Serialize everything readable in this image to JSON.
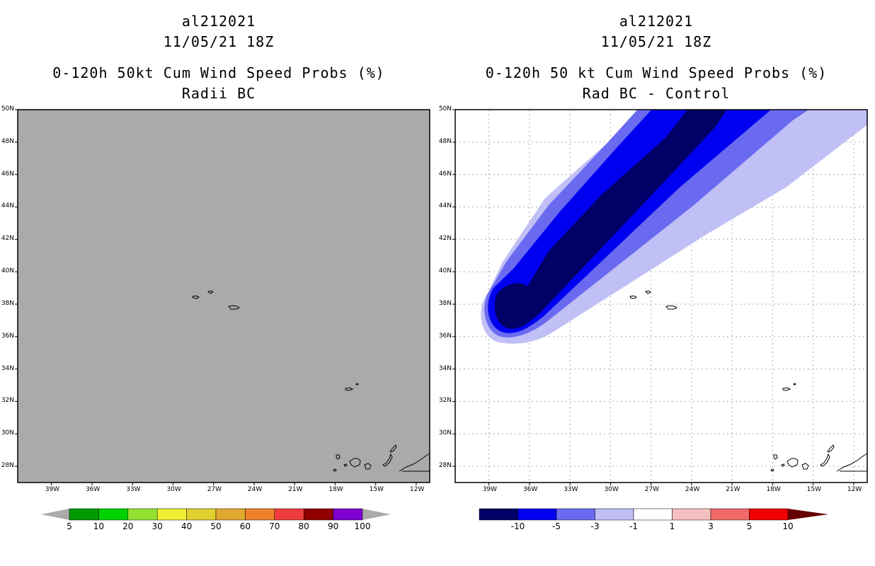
{
  "left": {
    "storm_id": "al212021",
    "datetime": "11/05/21 18Z",
    "product": "0-120h 50kt Cum Wind Speed Probs (%)",
    "subtitle": "Radii BC",
    "field": "uniform gray (no probability shading)",
    "colorbar_labels": [
      "5",
      "10",
      "20",
      "30",
      "40",
      "50",
      "60",
      "70",
      "80",
      "90",
      "100"
    ],
    "colorbar_colors": [
      "#009a00",
      "#00d200",
      "#94e032",
      "#f0f032",
      "#e0d030",
      "#e0a830",
      "#ef8128",
      "#f03c3c",
      "#900000",
      "#8000d0"
    ]
  },
  "right": {
    "storm_id": "al212021",
    "datetime": "11/05/21 18Z",
    "product": "0-120h 50 kt Cum Wind Speed Probs (%)",
    "subtitle": "Rad BC - Control",
    "colorbar_labels": [
      "-10",
      "-5",
      "-3",
      "-1",
      "1",
      "3",
      "5",
      "10"
    ],
    "colorbar_colors": [
      "#000066",
      "#0000f0",
      "#6a6af0",
      "#c0c0f6",
      "#ffffff",
      "#f6c0c0",
      "#f06a6a",
      "#f00000"
    ],
    "end_colors": {
      "low": "#000066",
      "high": "#660000"
    }
  },
  "lat_labels": [
    "50N",
    "48N",
    "46N",
    "44N",
    "42N",
    "40N",
    "38N",
    "36N",
    "34N",
    "32N",
    "30N",
    "28N"
  ],
  "lon_labels": [
    "39W",
    "36W",
    "33W",
    "30W",
    "27W",
    "24W",
    "21W",
    "18W",
    "15W",
    "12W"
  ],
  "lat_values": [
    50,
    48,
    46,
    44,
    42,
    40,
    38,
    36,
    34,
    32,
    30,
    28
  ],
  "lon_values": [
    -39,
    -36,
    -33,
    -30,
    -27,
    -24,
    -21,
    -18,
    -15,
    -12
  ],
  "extent": {
    "lon_min": -41.5,
    "lon_max": -11,
    "lat_min": 27,
    "lat_max": 50
  },
  "colors": {
    "frame_gray": "#aaaaaa",
    "grid": "#aaaaaa"
  }
}
